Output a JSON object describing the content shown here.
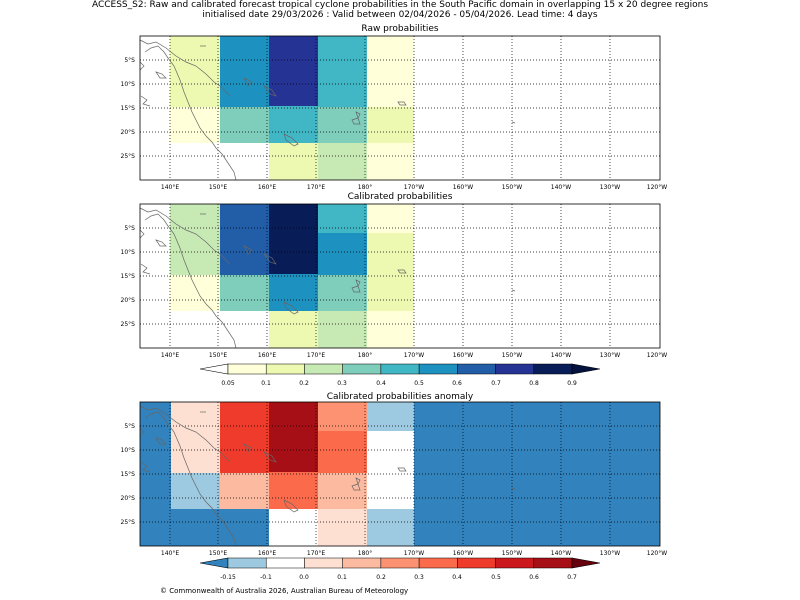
{
  "header": {
    "line1": "ACCESS_S2: Raw and calibrated forecast tropical cyclone probabilities in the South Pacific domain in overlapping 15 x 20 degree regions",
    "line2": "initialised date 29/03/2026 :  Valid between 02/04/2026 - 05/04/2026. Lead time: 4 days"
  },
  "panels": {
    "raw": {
      "title": "Raw probabilities"
    },
    "calibrated": {
      "title": "Calibrated probabilities"
    },
    "anomaly": {
      "title": "Calibrated probabilities anomaly"
    }
  },
  "axes": {
    "x_ticks": [
      "140°E",
      "150°E",
      "160°E",
      "170°E",
      "180°",
      "170°W",
      "160°W",
      "150°W",
      "140°W",
      "130°W",
      "120°W"
    ],
    "y_ticks": [
      "5°S",
      "10°S",
      "15°S",
      "20°S",
      "25°S"
    ]
  },
  "colorbars": {
    "probability": {
      "labels": [
        "0.05",
        "0.1",
        "0.2",
        "0.3",
        "0.4",
        "0.5",
        "0.6",
        "0.7",
        "0.8",
        "0.9"
      ],
      "colors": [
        "#ffffd9",
        "#edf8b1",
        "#c7e9b4",
        "#7fcdbb",
        "#41b6c4",
        "#1d91c0",
        "#225ea8",
        "#253494",
        "#081d58"
      ],
      "under_color": "#ffffff",
      "over_color": "#03123f"
    },
    "anomaly": {
      "labels": [
        "-0.15",
        "-0.1",
        "0.0",
        "0.1",
        "0.2",
        "0.3",
        "0.4",
        "0.5",
        "0.6",
        "0.7"
      ],
      "colors": [
        "#9ecae1",
        "#ffffff",
        "#fee0d2",
        "#fcbba1",
        "#fc9272",
        "#fb6a4a",
        "#ef3b2c",
        "#cb181d",
        "#a50f15"
      ],
      "under_color": "#3182bd",
      "over_color": "#67000d"
    }
  },
  "footer": {
    "text": "© Commonwealth of Australia 2026, Australian Bureau of Meteorology"
  }
}
